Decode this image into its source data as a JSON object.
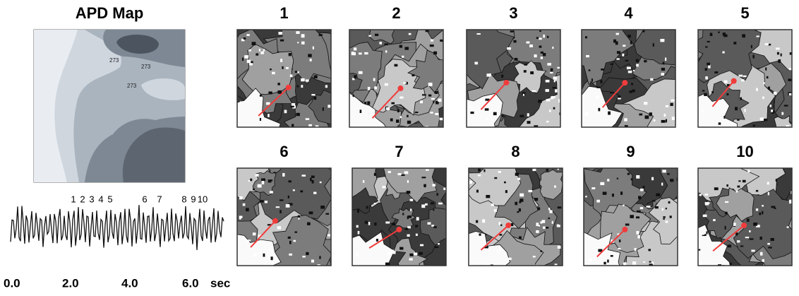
{
  "apd_map": {
    "title": "APD Map",
    "contour_labels": [
      "273",
      "273",
      "273"
    ]
  },
  "panels": [
    {
      "label": "1"
    },
    {
      "label": "2"
    },
    {
      "label": "3"
    },
    {
      "label": "4"
    },
    {
      "label": "5"
    },
    {
      "label": "6"
    },
    {
      "label": "7"
    },
    {
      "label": "8"
    },
    {
      "label": "9"
    },
    {
      "label": "10"
    }
  ],
  "trace": {
    "markers": [
      "1",
      "2",
      "3",
      "4",
      "5",
      "6",
      "7",
      "8",
      "9",
      "10"
    ],
    "time_labels": [
      "0.0",
      "2.0",
      "4.0",
      "6.0"
    ],
    "unit": "sec"
  }
}
